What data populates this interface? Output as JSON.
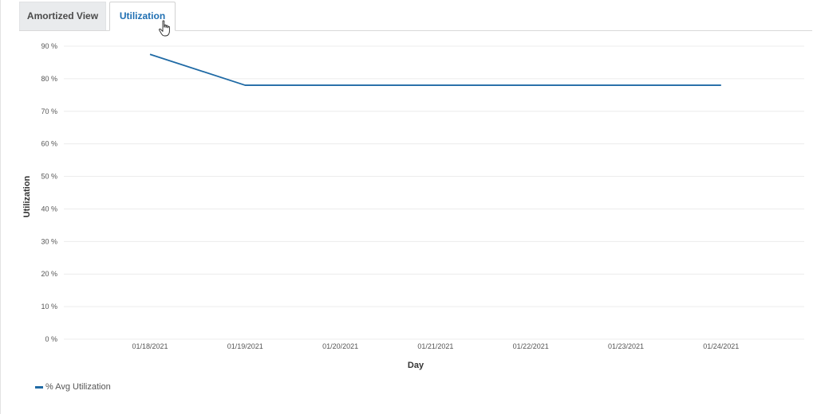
{
  "tabs": [
    {
      "label": "Amortized View",
      "active": false
    },
    {
      "label": "Utilization",
      "active": true
    }
  ],
  "colors": {
    "series": "#1f6aa5",
    "grid": "#ececec",
    "axis_text": "#555555",
    "active_tab": "#1f6fb2"
  },
  "chart_data": {
    "type": "line",
    "title": "",
    "xlabel": "Day",
    "ylabel": "Utilization",
    "categories": [
      "01/18/2021",
      "01/19/2021",
      "01/20/2021",
      "01/21/2021",
      "01/22/2021",
      "01/23/2021",
      "01/24/2021"
    ],
    "series": [
      {
        "name": "% Avg Utilization",
        "values": [
          87.5,
          78,
          78,
          78,
          78,
          78,
          78
        ]
      }
    ],
    "yticks": [
      "0 %",
      "10 %",
      "20 %",
      "30 %",
      "40 %",
      "50 %",
      "60 %",
      "70 %",
      "80 %",
      "90 %"
    ],
    "ylim": [
      0,
      90
    ],
    "grid": true,
    "legend_position": "bottom-left"
  }
}
